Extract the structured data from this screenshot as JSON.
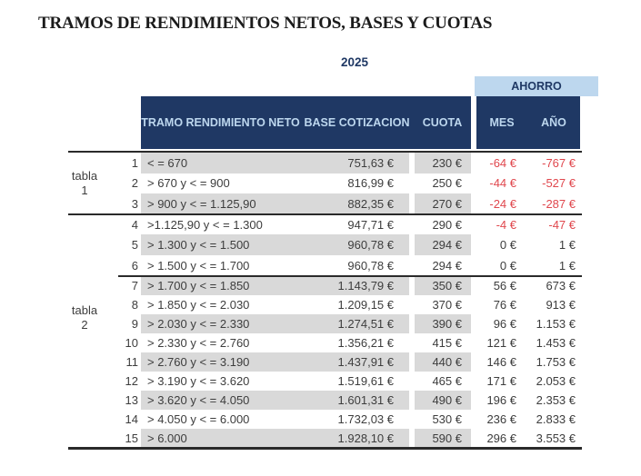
{
  "title": "TRAMOS DE RENDIMIENTOS NETOS, BASES Y CUOTAS",
  "year": "2025",
  "ahorro_label": "AHORRO",
  "groups": [
    {
      "line1": "tabla",
      "line2": "1"
    },
    {
      "line1": "tabla",
      "line2": "2"
    }
  ],
  "colors": {
    "header_bg": "#1f3864",
    "header_text": "#bdd7ee",
    "banner_bg": "#bdd7ee",
    "shaded_row": "#d9d9d9",
    "negative_value": "#e0474d",
    "body_text": "#3d3d3d"
  },
  "table": {
    "columns": {
      "tramo": "TRAMO RENDIMIENTO NETO",
      "base": "BASE COTIZACION",
      "cuota": "CUOTA",
      "mes": "MES",
      "ano": "AÑO"
    },
    "rows": [
      {
        "num": "1",
        "tramo": "< = 670",
        "base": "751,63 €",
        "cuota": "230 €",
        "mes": "-64 €",
        "ano": "-767 €"
      },
      {
        "num": "2",
        "tramo": "> 670 y < = 900",
        "base": "816,99 €",
        "cuota": "250 €",
        "mes": "-44 €",
        "ano": "-527 €"
      },
      {
        "num": "3",
        "tramo": "> 900 y < = 1.125,90",
        "base": "882,35 €",
        "cuota": "270 €",
        "mes": "-24 €",
        "ano": "-287 €"
      },
      {
        "num": "4",
        "tramo": ">1.125,90 y < = 1.300",
        "base": "947,71 €",
        "cuota": "290 €",
        "mes": "-4 €",
        "ano": "-47 €"
      },
      {
        "num": "5",
        "tramo": "> 1.300 y < = 1.500",
        "base": "960,78 €",
        "cuota": "294 €",
        "mes": "0 €",
        "ano": "1 €"
      },
      {
        "num": "6",
        "tramo": "> 1.500 y < = 1.700",
        "base": "960,78 €",
        "cuota": "294 €",
        "mes": "0 €",
        "ano": "1 €"
      },
      {
        "num": "7",
        "tramo": "> 1.700 y < = 1.850",
        "base": "1.143,79 €",
        "cuota": "350 €",
        "mes": "56 €",
        "ano": "673 €"
      },
      {
        "num": "8",
        "tramo": "> 1.850 y < = 2.030",
        "base": "1.209,15 €",
        "cuota": "370 €",
        "mes": "76 €",
        "ano": "913 €"
      },
      {
        "num": "9",
        "tramo": "> 2.030 y < = 2.330",
        "base": "1.274,51 €",
        "cuota": "390 €",
        "mes": "96 €",
        "ano": "1.153 €"
      },
      {
        "num": "10",
        "tramo": "> 2.330 y < = 2.760",
        "base": "1.356,21 €",
        "cuota": "415 €",
        "mes": "121 €",
        "ano": "1.453 €"
      },
      {
        "num": "11",
        "tramo": "> 2.760 y < = 3.190",
        "base": "1.437,91 €",
        "cuota": "440 €",
        "mes": "146 €",
        "ano": "1.753 €"
      },
      {
        "num": "12",
        "tramo": "> 3.190 y < = 3.620",
        "base": "1.519,61 €",
        "cuota": "465 €",
        "mes": "171 €",
        "ano": "2.053 €"
      },
      {
        "num": "13",
        "tramo": "> 3.620 y < = 4.050",
        "base": "1.601,31 €",
        "cuota": "490 €",
        "mes": "196 €",
        "ano": "2.353 €"
      },
      {
        "num": "14",
        "tramo": "> 4.050 y < = 6.000",
        "base": "1.732,03 €",
        "cuota": "530 €",
        "mes": "236 €",
        "ano": "2.833 €"
      },
      {
        "num": "15",
        "tramo": "> 6.000",
        "base": "1.928,10 €",
        "cuota": "590 €",
        "mes": "296 €",
        "ano": "3.553 €"
      }
    ]
  }
}
